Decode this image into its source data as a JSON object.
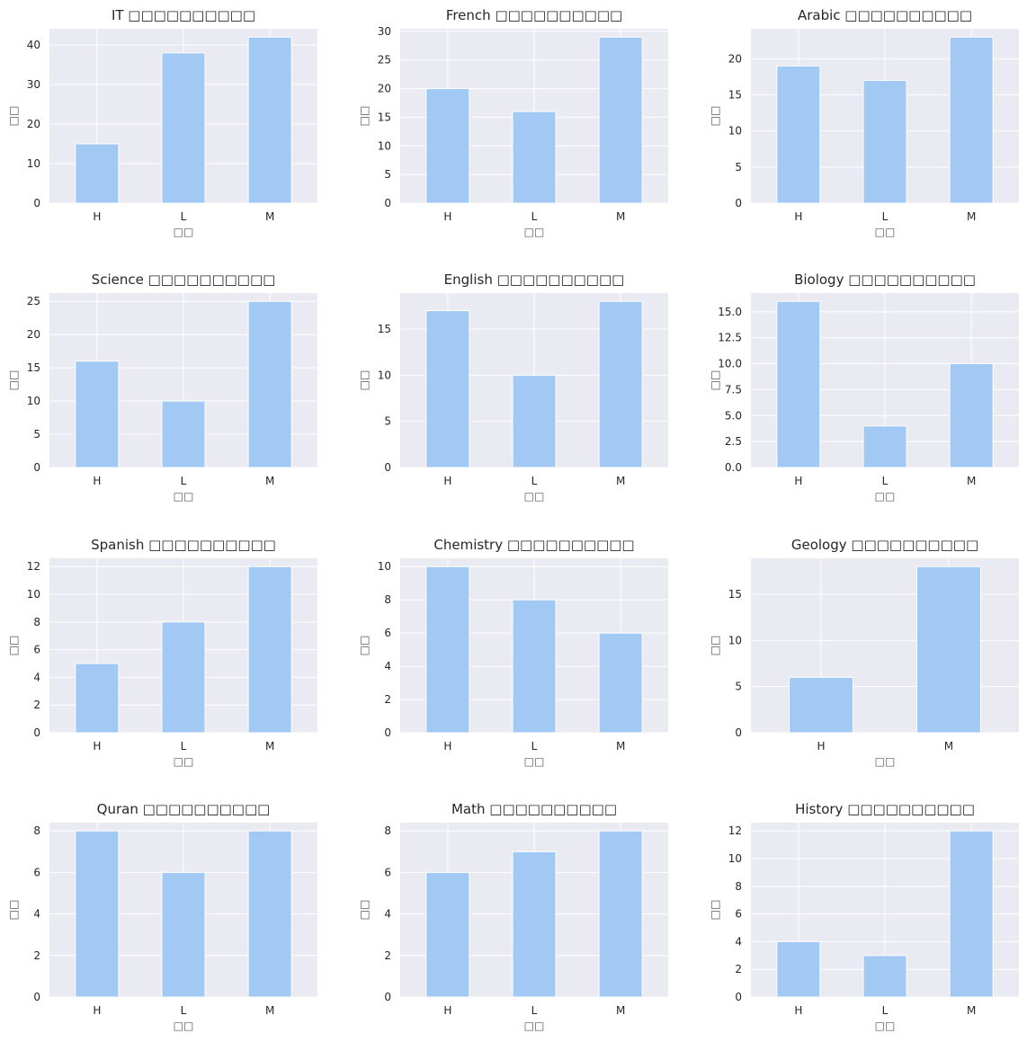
{
  "style": {
    "plot_bg": "#eaeaf2",
    "grid": "#ffffff",
    "bar_fill": "#a1c9f4",
    "text": "#262626"
  },
  "chart_data": [
    {
      "type": "bar",
      "title": "IT □□□□□□□□□□",
      "xlabel": "□□",
      "ylabel": "□□",
      "categories": [
        "H",
        "L",
        "M"
      ],
      "values": [
        15,
        38,
        42
      ],
      "ylim": [
        0,
        44.1
      ],
      "yticks": [
        0,
        10,
        20,
        30,
        40
      ]
    },
    {
      "type": "bar",
      "title": "French □□□□□□□□□□",
      "xlabel": "□□",
      "ylabel": "□□",
      "categories": [
        "H",
        "L",
        "M"
      ],
      "values": [
        20,
        16,
        29
      ],
      "ylim": [
        0,
        30.45
      ],
      "yticks": [
        0,
        5,
        10,
        15,
        20,
        25,
        30
      ]
    },
    {
      "type": "bar",
      "title": "Arabic □□□□□□□□□□",
      "xlabel": "□□",
      "ylabel": "□□",
      "categories": [
        "H",
        "L",
        "M"
      ],
      "values": [
        19,
        17,
        23
      ],
      "ylim": [
        0,
        24.15
      ],
      "yticks": [
        0,
        5,
        10,
        15,
        20
      ]
    },
    {
      "type": "bar",
      "title": "Science □□□□□□□□□□",
      "xlabel": "□□",
      "ylabel": "□□",
      "categories": [
        "H",
        "L",
        "M"
      ],
      "values": [
        16,
        10,
        25
      ],
      "ylim": [
        0,
        26.25
      ],
      "yticks": [
        0,
        5,
        10,
        15,
        20,
        25
      ]
    },
    {
      "type": "bar",
      "title": "English □□□□□□□□□□",
      "xlabel": "□□",
      "ylabel": "□□",
      "categories": [
        "H",
        "L",
        "M"
      ],
      "values": [
        17,
        10,
        18
      ],
      "ylim": [
        0,
        18.9
      ],
      "yticks": [
        0,
        5,
        10,
        15
      ]
    },
    {
      "type": "bar",
      "title": "Biology □□□□□□□□□□",
      "xlabel": "□□",
      "ylabel": "□□",
      "categories": [
        "H",
        "L",
        "M"
      ],
      "values": [
        16,
        4,
        10
      ],
      "ylim": [
        0,
        16.8
      ],
      "yticks": [
        0,
        2.5,
        5,
        7.5,
        10,
        12.5,
        15
      ],
      "ytick_labels": [
        "0.0",
        "2.5",
        "5.0",
        "7.5",
        "10.0",
        "12.5",
        "15.0"
      ]
    },
    {
      "type": "bar",
      "title": "Spanish □□□□□□□□□□",
      "xlabel": "□□",
      "ylabel": "□□",
      "categories": [
        "H",
        "L",
        "M"
      ],
      "values": [
        5,
        8,
        12
      ],
      "ylim": [
        0,
        12.6
      ],
      "yticks": [
        0,
        2,
        4,
        6,
        8,
        10,
        12
      ]
    },
    {
      "type": "bar",
      "title": "Chemistry □□□□□□□□□□",
      "xlabel": "□□",
      "ylabel": "□□",
      "categories": [
        "H",
        "L",
        "M"
      ],
      "values": [
        10,
        8,
        6
      ],
      "ylim": [
        0,
        10.5
      ],
      "yticks": [
        0,
        2,
        4,
        6,
        8,
        10
      ]
    },
    {
      "type": "bar",
      "title": "Geology □□□□□□□□□□",
      "xlabel": "□□",
      "ylabel": "□□",
      "categories": [
        "H",
        "M"
      ],
      "values": [
        6,
        18
      ],
      "ylim": [
        0,
        18.9
      ],
      "yticks": [
        0,
        5,
        10,
        15
      ]
    },
    {
      "type": "bar",
      "title": "Quran □□□□□□□□□□",
      "xlabel": "□□",
      "ylabel": "□□",
      "categories": [
        "H",
        "L",
        "M"
      ],
      "values": [
        8,
        6,
        8
      ],
      "ylim": [
        0,
        8.4
      ],
      "yticks": [
        0,
        2,
        4,
        6,
        8
      ]
    },
    {
      "type": "bar",
      "title": "Math □□□□□□□□□□",
      "xlabel": "□□",
      "ylabel": "□□",
      "categories": [
        "H",
        "L",
        "M"
      ],
      "values": [
        6,
        7,
        8
      ],
      "ylim": [
        0,
        8.4
      ],
      "yticks": [
        0,
        2,
        4,
        6,
        8
      ]
    },
    {
      "type": "bar",
      "title": "History □□□□□□□□□□",
      "xlabel": "□□",
      "ylabel": "□□",
      "categories": [
        "H",
        "L",
        "M"
      ],
      "values": [
        4,
        3,
        12
      ],
      "ylim": [
        0,
        12.6
      ],
      "yticks": [
        0,
        2,
        4,
        6,
        8,
        10,
        12
      ]
    }
  ]
}
